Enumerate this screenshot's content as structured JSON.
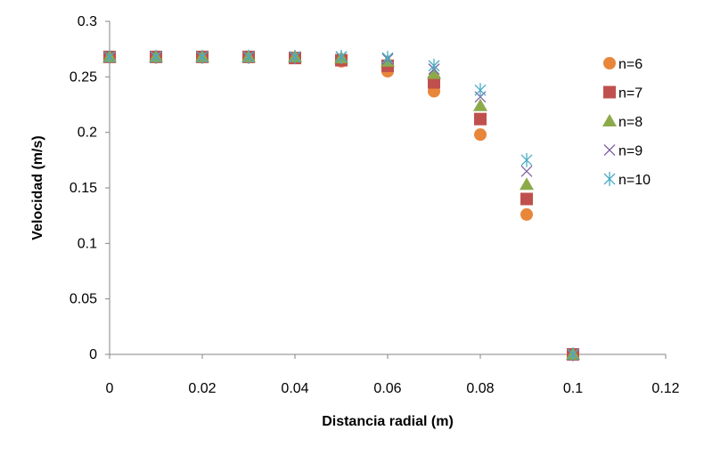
{
  "chart_data": {
    "type": "scatter",
    "title": "",
    "xlabel": "Distancia radial (m)",
    "ylabel": "Velocidad (m/s)",
    "xlim": [
      0,
      0.12
    ],
    "ylim": [
      0,
      0.3
    ],
    "xticks": [
      0,
      0.02,
      0.04,
      0.06,
      0.08,
      0.1,
      0.12
    ],
    "xtick_labels": [
      "0",
      "0.02",
      "0.04",
      "0.06",
      "0.08",
      "0.1",
      "0.12"
    ],
    "yticks": [
      0,
      0.05,
      0.1,
      0.15,
      0.2,
      0.25,
      0.3
    ],
    "ytick_labels": [
      "0",
      "0.05",
      "0.1",
      "0.15",
      "0.2",
      "0.25",
      "0.3"
    ],
    "grid": false,
    "legend_position": "right",
    "x": [
      0,
      0.01,
      0.02,
      0.03,
      0.04,
      0.05,
      0.06,
      0.07,
      0.08,
      0.09,
      0.1
    ],
    "series": [
      {
        "name": "n=6",
        "marker": "circle",
        "color": "#E8863A",
        "values": [
          0.268,
          0.268,
          0.268,
          0.268,
          0.267,
          0.264,
          0.255,
          0.237,
          0.198,
          0.126,
          0.0
        ]
      },
      {
        "name": "n=7",
        "marker": "square",
        "color": "#C0504D",
        "values": [
          0.268,
          0.268,
          0.268,
          0.268,
          0.267,
          0.265,
          0.26,
          0.245,
          0.212,
          0.14,
          0.0
        ]
      },
      {
        "name": "n=8",
        "marker": "triangle",
        "color": "#8DAA4A",
        "values": [
          0.268,
          0.268,
          0.268,
          0.268,
          0.268,
          0.267,
          0.264,
          0.253,
          0.224,
          0.153,
          0.0
        ]
      },
      {
        "name": "n=9",
        "marker": "x",
        "color": "#8064A2",
        "values": [
          0.268,
          0.268,
          0.268,
          0.268,
          0.268,
          0.268,
          0.266,
          0.257,
          0.232,
          0.165,
          0.0
        ]
      },
      {
        "name": "n=10",
        "marker": "star",
        "color": "#4BACC6",
        "values": [
          0.268,
          0.268,
          0.268,
          0.268,
          0.268,
          0.268,
          0.267,
          0.26,
          0.238,
          0.175,
          0.0
        ]
      }
    ]
  }
}
